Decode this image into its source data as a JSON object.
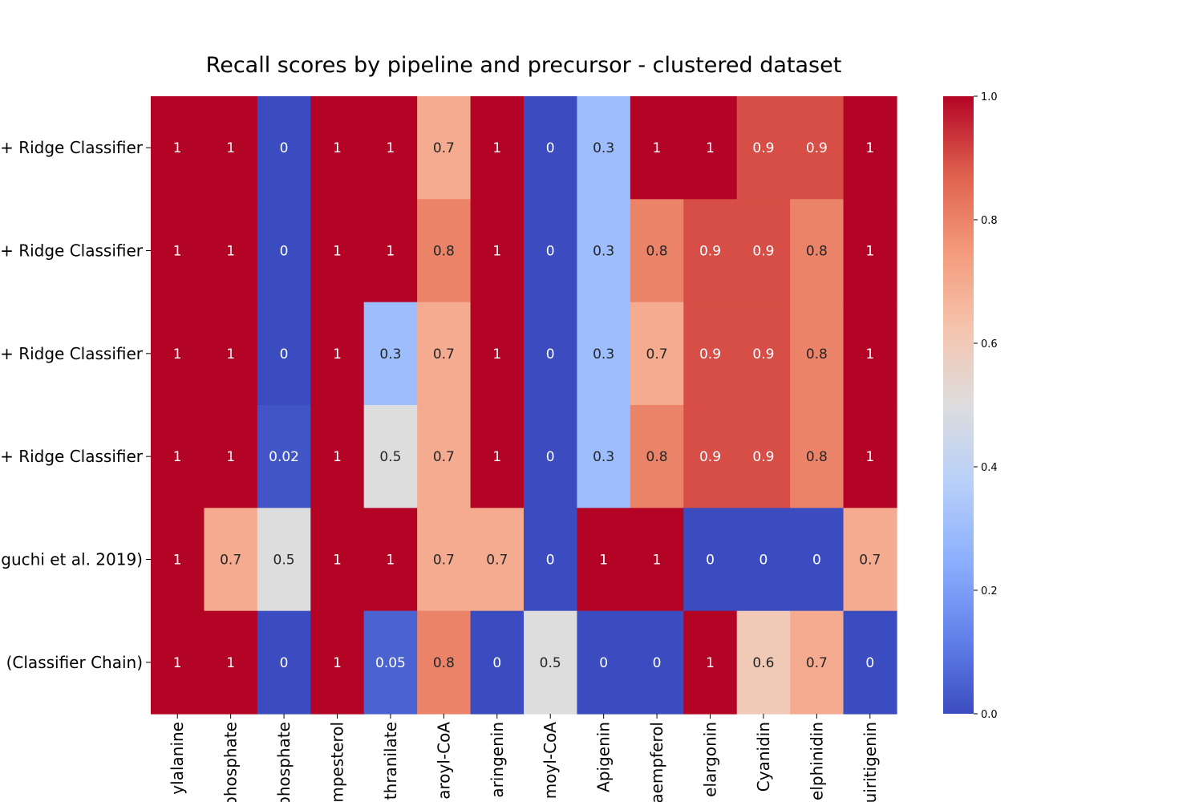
{
  "chart_data": {
    "type": "heatmap",
    "title": "Recall scores by pipeline and precursor - clustered dataset",
    "xlabel": "",
    "ylabel": "",
    "row_labels": [
      "+ Ridge Classifier",
      "+ Ridge Classifier",
      "+ Ridge Classifier",
      "+ Ridge Classifier",
      "guchi et al. 2019)",
      "(Classifier Chain)"
    ],
    "col_labels": [
      "ylalanine",
      "phosphate",
      "phosphate",
      "mpesterol",
      "thranilate",
      "aroyl-CoA",
      "aringenin",
      "moyl-CoA",
      "Apigenin",
      "aempferol",
      "elargonin",
      "Cyanidin",
      "elphinidin",
      "uiritigenin"
    ],
    "values": [
      [
        1,
        1,
        0,
        1,
        1,
        0.7,
        1,
        0,
        0.3,
        1,
        1,
        0.9,
        0.9,
        1
      ],
      [
        1,
        1,
        0,
        1,
        1,
        0.8,
        1,
        0,
        0.3,
        0.8,
        0.9,
        0.9,
        0.8,
        1
      ],
      [
        1,
        1,
        0,
        1,
        0.3,
        0.7,
        1,
        0,
        0.3,
        0.7,
        0.9,
        0.9,
        0.8,
        1
      ],
      [
        1,
        1,
        0.02,
        1,
        0.5,
        0.7,
        1,
        0,
        0.3,
        0.8,
        0.9,
        0.9,
        0.8,
        1
      ],
      [
        1,
        0.7,
        0.5,
        1,
        1,
        0.7,
        0.7,
        0,
        1,
        1,
        0,
        0,
        0,
        0.7
      ],
      [
        1,
        1,
        0,
        1,
        0.05,
        0.8,
        0,
        0.5,
        0,
        0,
        1,
        0.6,
        0.7,
        0
      ]
    ],
    "cell_labels": [
      [
        "1",
        "1",
        "0",
        "1",
        "1",
        "0.7",
        "1",
        "0",
        "0.3",
        "1",
        "1",
        "0.9",
        "0.9",
        "1"
      ],
      [
        "1",
        "1",
        "0",
        "1",
        "1",
        "0.8",
        "1",
        "0",
        "0.3",
        "0.8",
        "0.9",
        "0.9",
        "0.8",
        "1"
      ],
      [
        "1",
        "1",
        "0",
        "1",
        "0.3",
        "0.7",
        "1",
        "0",
        "0.3",
        "0.7",
        "0.9",
        "0.9",
        "0.8",
        "1"
      ],
      [
        "1",
        "1",
        "0.02",
        "1",
        "0.5",
        "0.7",
        "1",
        "0",
        "0.3",
        "0.8",
        "0.9",
        "0.9",
        "0.8",
        "1"
      ],
      [
        "1",
        "0.7",
        "0.5",
        "1",
        "1",
        "0.7",
        "0.7",
        "0",
        "1",
        "1",
        "0",
        "0",
        "0",
        "0.7"
      ],
      [
        "1",
        "1",
        "0",
        "1",
        "0.05",
        "0.8",
        "0",
        "0.5",
        "0",
        "0",
        "1",
        "0.6",
        "0.7",
        "0"
      ]
    ],
    "colormap": "coolwarm",
    "vmin": 0,
    "vmax": 1,
    "colorbar_ticks": [
      "0.0",
      "0.2",
      "0.4",
      "0.6",
      "0.8",
      "1.0"
    ]
  }
}
